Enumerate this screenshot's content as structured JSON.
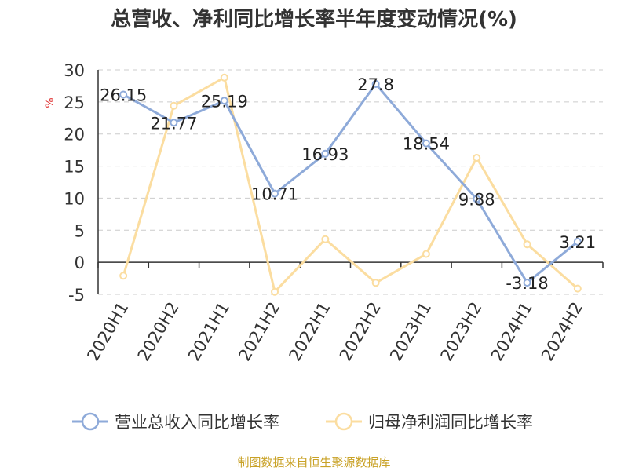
{
  "chart_data": {
    "type": "line",
    "title": "总营收、净利同比增长率半年度变动情况(%)",
    "ylabel": "%",
    "xlabel": "",
    "categories": [
      "2020H1",
      "2020H2",
      "2021H1",
      "2021H2",
      "2022H1",
      "2022H2",
      "2023H1",
      "2023H2",
      "2024H1",
      "2024H2"
    ],
    "ylim": [
      -5,
      30
    ],
    "yticks": [
      30,
      25,
      20,
      15,
      10,
      5,
      0,
      -5
    ],
    "grid": true,
    "legend_position": "bottom",
    "series": [
      {
        "name": "营业总收入同比增长率",
        "color": "#8eaad9",
        "values": [
          26.15,
          21.77,
          25.19,
          10.71,
          16.93,
          27.8,
          18.54,
          9.88,
          -3.18,
          3.21
        ],
        "labels": [
          "26.15",
          "21.77",
          "25.19",
          "10.71",
          "16.93",
          "27.8",
          "18.54",
          "9.88",
          "-3.18",
          "3.21"
        ]
      },
      {
        "name": "归母净利润同比增长率",
        "color": "#fbdda0",
        "values": [
          -2.1,
          24.4,
          28.8,
          -4.6,
          3.6,
          -3.2,
          1.3,
          16.3,
          2.8,
          -4.1
        ]
      }
    ],
    "source": "制图数据来自恒生聚源数据库",
    "source_color": "#c9a227",
    "ylabel_color": "#e03030"
  }
}
